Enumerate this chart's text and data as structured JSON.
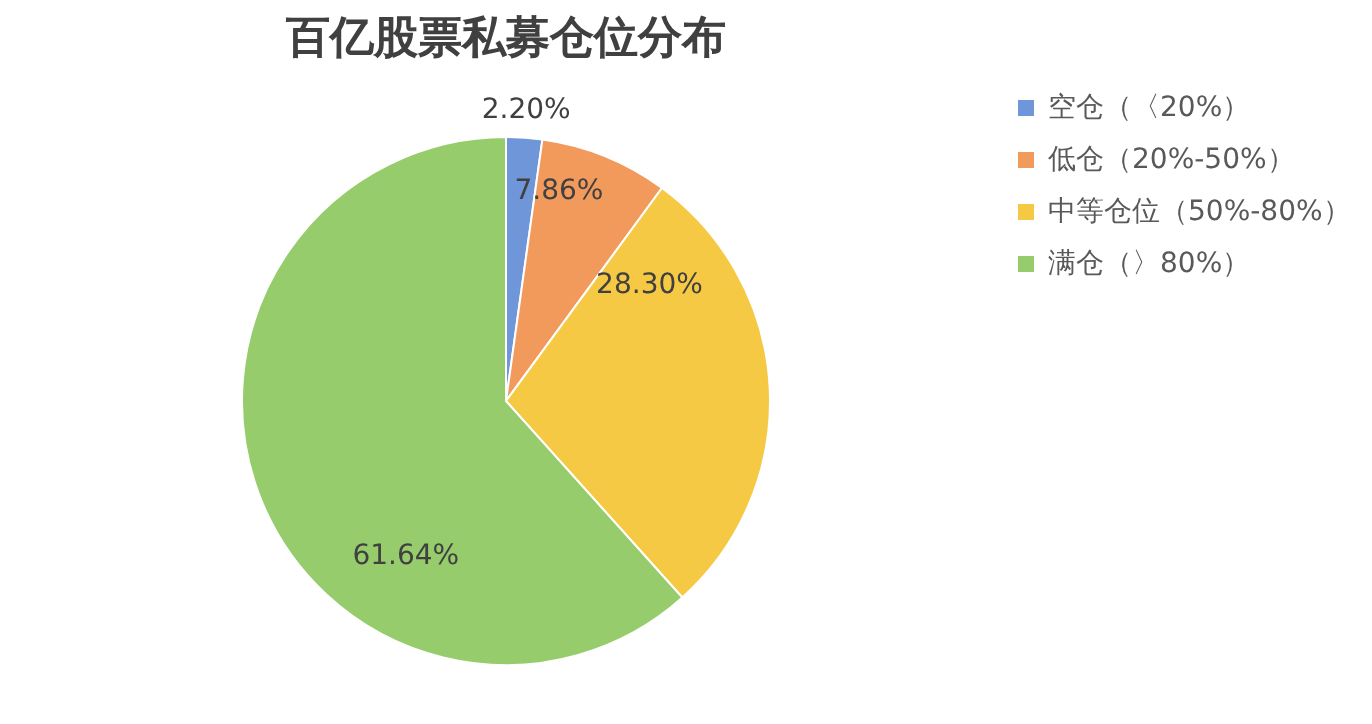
{
  "chart_data": {
    "type": "pie",
    "title": "百亿股票私募仓位分布",
    "categories": [
      "空仓（〈20%）",
      "低仓（20%-50%）",
      "中等仓位（50%-80%）",
      "满仓（〉80%）"
    ],
    "values": [
      2.2,
      7.86,
      28.3,
      61.64
    ],
    "value_labels": [
      "2.20%",
      "7.86%",
      "28.30%",
      "61.64%"
    ],
    "colors": [
      "#6f96d8",
      "#f29a5c",
      "#f6c945",
      "#96cc6c"
    ],
    "legend": "right"
  }
}
